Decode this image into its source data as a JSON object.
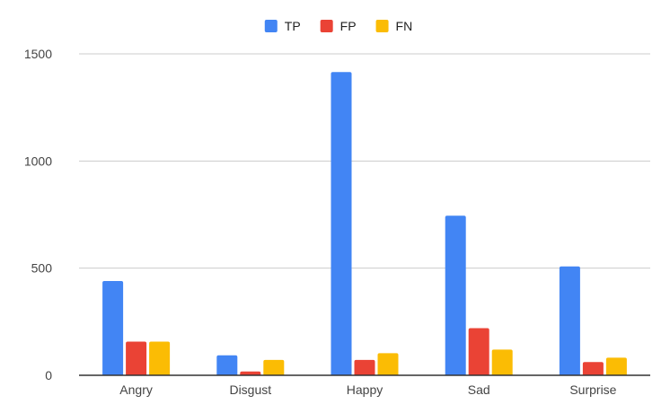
{
  "chart_data": {
    "type": "bar",
    "categories": [
      "Angry",
      "Disgust",
      "Happy",
      "Sad",
      "Surprise"
    ],
    "series": [
      {
        "name": "TP",
        "color": "#4285F4",
        "values": [
          440,
          93,
          1415,
          745,
          508
        ]
      },
      {
        "name": "FP",
        "color": "#EA4335",
        "values": [
          157,
          18,
          72,
          220,
          62
        ]
      },
      {
        "name": "FN",
        "color": "#FBBC04",
        "values": [
          157,
          72,
          103,
          120,
          82
        ]
      }
    ],
    "title": "",
    "xlabel": "",
    "ylabel": "",
    "ylim": [
      0,
      1500
    ],
    "yticks": [
      0,
      500,
      1000,
      1500
    ],
    "grid": true,
    "legend_position": "top-center"
  }
}
